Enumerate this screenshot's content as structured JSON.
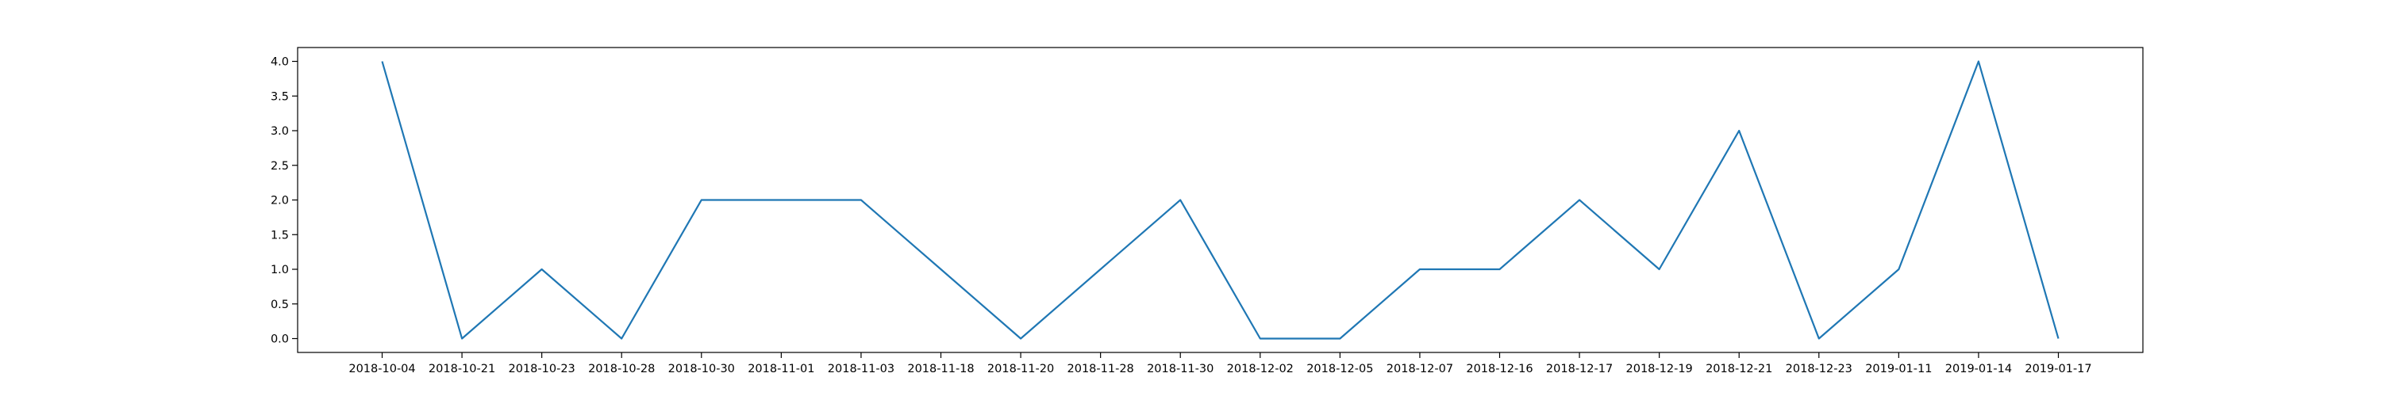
{
  "chart_data": {
    "type": "line",
    "categories": [
      "2018-10-04",
      "2018-10-21",
      "2018-10-23",
      "2018-10-28",
      "2018-10-30",
      "2018-11-01",
      "2018-11-03",
      "2018-11-18",
      "2018-11-20",
      "2018-11-28",
      "2018-11-30",
      "2018-12-02",
      "2018-12-05",
      "2018-12-07",
      "2018-12-16",
      "2018-12-17",
      "2018-12-19",
      "2018-12-21",
      "2018-12-23",
      "2019-01-11",
      "2019-01-14",
      "2019-01-17"
    ],
    "series": [
      {
        "values": [
          4,
          0,
          1,
          0,
          2,
          2,
          2,
          1,
          0,
          1,
          2,
          0,
          0,
          1,
          1,
          2,
          1,
          3,
          0,
          1,
          4,
          0
        ]
      }
    ],
    "y_ticks": [
      "0.0",
      "0.5",
      "1.0",
      "1.5",
      "2.0",
      "2.5",
      "3.0",
      "3.5",
      "4.0"
    ],
    "ylim": [
      -0.2,
      4.2
    ],
    "grid": false,
    "line_color": "#1f77b4"
  }
}
